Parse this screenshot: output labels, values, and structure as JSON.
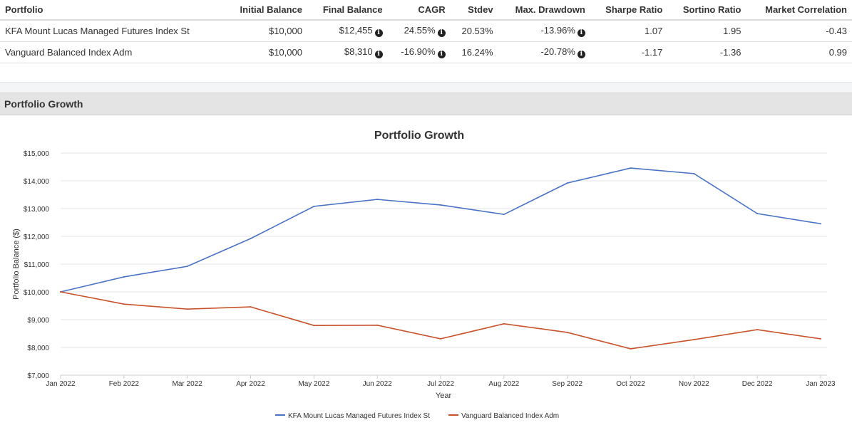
{
  "table": {
    "headers": [
      "Portfolio",
      "Initial Balance",
      "Final Balance",
      "CAGR",
      "Stdev",
      "Max. Drawdown",
      "Sharpe Ratio",
      "Sortino Ratio",
      "Market Correlation"
    ],
    "rows": [
      [
        "KFA Mount Lucas Managed Futures Index St",
        "$10,000",
        "$12,455",
        "24.55%",
        "20.53%",
        "-13.96%",
        "1.07",
        "1.95",
        "-0.43"
      ],
      [
        "Vanguard Balanced Index Adm",
        "$10,000",
        "$8,310",
        "-16.90%",
        "16.24%",
        "-20.78%",
        "-1.17",
        "-1.36",
        "0.99"
      ]
    ],
    "info_icon": "info-circle-icon"
  },
  "section_title": "Portfolio Growth",
  "chart_data": {
    "type": "line",
    "title": "Portfolio Growth",
    "xlabel": "Year",
    "ylabel": "Portfolio Balance ($)",
    "categories": [
      "Jan 2022",
      "Feb 2022",
      "Mar 2022",
      "Apr 2022",
      "May 2022",
      "Jun 2022",
      "Jul 2022",
      "Aug 2022",
      "Sep 2022",
      "Oct 2022",
      "Nov 2022",
      "Dec 2022",
      "Jan 2023"
    ],
    "yticks": [
      "$7,000",
      "$8,000",
      "$9,000",
      "$10,000",
      "$11,000",
      "$12,000",
      "$13,000",
      "$14,000",
      "$15,000"
    ],
    "ylim": [
      7000,
      15000
    ],
    "grid": true,
    "legend": "bottom",
    "series": [
      {
        "name": "KFA Mount Lucas Managed Futures Index St",
        "color": "#4a72c4",
        "values": [
          10000,
          10540,
          10920,
          11920,
          13080,
          13330,
          13130,
          12790,
          13920,
          14460,
          14260,
          12820,
          12455
        ]
      },
      {
        "name": "Vanguard Balanced Index Adm",
        "color": "#c8532b",
        "values": [
          10000,
          9560,
          9380,
          9460,
          8790,
          8800,
          8310,
          8850,
          8540,
          7950,
          8280,
          8640,
          8310
        ]
      }
    ]
  }
}
